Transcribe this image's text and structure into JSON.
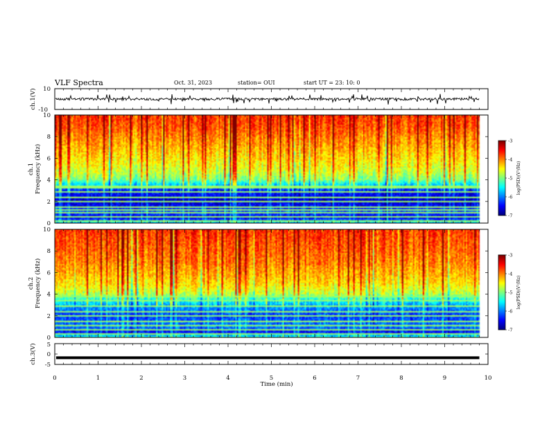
{
  "header": {
    "title": "VLF Spectra",
    "date": "Oct. 31, 2023",
    "station": "station= OUI",
    "start": "start  UT  =   23: 10: 0"
  },
  "chart_data": [
    {
      "type": "line",
      "panel": "ch1-waveform",
      "ylabel": "ch.1(V)",
      "ylim": [
        -10,
        10
      ],
      "ytick_labels": [
        "10",
        "-10"
      ],
      "xlim": [
        0,
        10
      ],
      "x_unit": "min",
      "baseline_value": 0.0,
      "noise_amplitude": 1.2,
      "spike_amplitude": 4.5,
      "note_visible": "noisy trace centred near 0 V with short spikes"
    },
    {
      "type": "heatmap",
      "panel": "ch1-spectrogram",
      "ylabel": "ch.1\nFrequency (kHz)",
      "ylim": [
        0,
        10
      ],
      "ytick_labels": [
        "0",
        "2",
        "4",
        "6",
        "8",
        "10"
      ],
      "xlim": [
        0,
        10
      ],
      "data_end_min": 9.8,
      "colorbar": {
        "label": "log(PSD)(V²/Hz)",
        "range": [
          -7,
          -3
        ],
        "tick_labels": [
          "-3",
          "-4",
          "-5",
          "-6",
          "-7"
        ]
      },
      "freq_profile_kHz": [
        0,
        0.5,
        1,
        2,
        3,
        3.5,
        4,
        5,
        6,
        7,
        8,
        9,
        10
      ],
      "level_profile": [
        -5.5,
        -6.6,
        -6.2,
        -6.7,
        -6.4,
        -5.7,
        -5.0,
        -4.6,
        -4.4,
        -4.2,
        -4.0,
        -3.8,
        -3.7
      ],
      "horizontal_lines_kHz": [
        0.3,
        0.6,
        1.0,
        1.3,
        1.6,
        2.0,
        2.5,
        3.0,
        3.3,
        3.5
      ]
    },
    {
      "type": "heatmap",
      "panel": "ch2-spectrogram",
      "ylabel": "ch.2\nFrequency (kHz)",
      "ylim": [
        0,
        10
      ],
      "ytick_labels": [
        "0",
        "2",
        "4",
        "6",
        "8",
        "10"
      ],
      "xlim": [
        0,
        10
      ],
      "data_end_min": 9.8,
      "colorbar": {
        "label": "log(PSD)(V²/Hz)",
        "range": [
          -7,
          -3
        ],
        "tick_labels": [
          "-3",
          "-4",
          "-5",
          "-6",
          "-7"
        ]
      },
      "freq_profile_kHz": [
        0,
        0.5,
        1,
        2,
        3,
        3.5,
        4,
        5,
        6,
        7,
        8,
        9,
        10
      ],
      "level_profile": [
        -5.3,
        -6.5,
        -6.0,
        -6.3,
        -5.8,
        -5.4,
        -4.8,
        -4.4,
        -4.2,
        -4.0,
        -3.9,
        -3.8,
        -3.7
      ],
      "horizontal_lines_kHz": [
        0.4,
        0.8,
        1.2,
        1.5,
        2.0,
        2.5,
        3.0,
        3.5,
        3.8
      ]
    },
    {
      "type": "line",
      "panel": "ch3-waveform",
      "ylabel": "ch.3(V)",
      "ylim": [
        -5,
        5
      ],
      "ytick_labels": [
        "5",
        "0",
        "-5"
      ],
      "xlim": [
        0,
        10
      ],
      "x_unit": "min",
      "baseline_value": -1.8,
      "xlabel": "Time (min)",
      "xtick_labels": [
        "0",
        "1",
        "2",
        "3",
        "4",
        "5",
        "6",
        "7",
        "8",
        "9",
        "10"
      ]
    }
  ]
}
